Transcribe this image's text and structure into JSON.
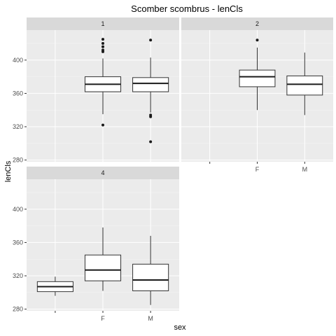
{
  "chart_data": {
    "type": "boxplot",
    "title": "Scomber scombrus - lenCls",
    "xlabel": "sex",
    "ylabel": "lenCls",
    "categories": [
      "",
      "F",
      "M"
    ],
    "ylim": [
      278,
      436
    ],
    "yticks": [
      280,
      320,
      360,
      400
    ],
    "facets": [
      {
        "label": "1",
        "boxes": [
          {
            "category": "F",
            "lower_whisker": 335,
            "q1": 362,
            "median": 371,
            "q3": 380,
            "upper_whisker": 402,
            "outliers": [
              322,
              410,
              412,
              416,
              420,
              425
            ]
          },
          {
            "category": "M",
            "lower_whisker": 337,
            "q1": 362,
            "median": 372,
            "q3": 379,
            "upper_whisker": 403,
            "outliers": [
              302,
              332,
              334,
              424
            ]
          }
        ]
      },
      {
        "label": "2",
        "boxes": [
          {
            "category": "F",
            "lower_whisker": 340,
            "q1": 368,
            "median": 380,
            "q3": 388,
            "upper_whisker": 415,
            "outliers": [
              424
            ]
          },
          {
            "category": "M",
            "lower_whisker": 334,
            "q1": 358,
            "median": 371,
            "q3": 381,
            "upper_whisker": 409,
            "outliers": []
          }
        ]
      },
      {
        "label": "4",
        "boxes": [
          {
            "category": "",
            "lower_whisker": 296,
            "q1": 301,
            "median": 307,
            "q3": 313,
            "upper_whisker": 319,
            "outliers": []
          },
          {
            "category": "F",
            "lower_whisker": 302,
            "q1": 314,
            "median": 327,
            "q3": 345,
            "upper_whisker": 378,
            "outliers": []
          },
          {
            "category": "M",
            "lower_whisker": 285,
            "q1": 302,
            "median": 315,
            "q3": 334,
            "upper_whisker": 368,
            "outliers": []
          }
        ]
      }
    ]
  }
}
